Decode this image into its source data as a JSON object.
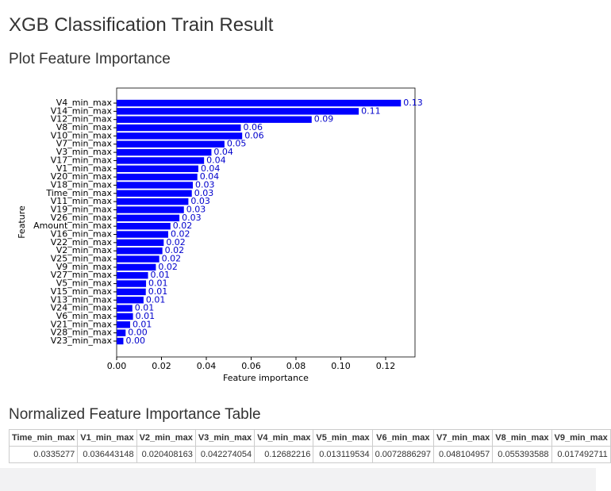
{
  "header": {
    "title": "XGB Classification Train Result",
    "subtitle": "Plot Feature Importance"
  },
  "chart_data": {
    "type": "barh",
    "xlabel": "Feature importance",
    "ylabel": "Feature",
    "color": "#0000ff",
    "label_color": "#0000cc",
    "categories": [
      "V4_min_max",
      "V14_min_max",
      "V12_min_max",
      "V8_min_max",
      "V10_min_max",
      "V7_min_max",
      "V3_min_max",
      "V17_min_max",
      "V1_min_max",
      "V20_min_max",
      "V18_min_max",
      "Time_min_max",
      "V11_min_max",
      "V19_min_max",
      "V26_min_max",
      "Amount_min_max",
      "V16_min_max",
      "V22_min_max",
      "V2_min_max",
      "V25_min_max",
      "V9_min_max",
      "V27_min_max",
      "V5_min_max",
      "V15_min_max",
      "V13_min_max",
      "V24_min_max",
      "V6_min_max",
      "V21_min_max",
      "V28_min_max",
      "V23_min_max"
    ],
    "values": [
      0.12682216,
      0.108,
      0.087,
      0.055393588,
      0.056,
      0.048104957,
      0.042274054,
      0.039,
      0.036443148,
      0.036,
      0.034,
      0.0335277,
      0.032,
      0.03,
      0.028,
      0.024,
      0.023,
      0.021,
      0.020408163,
      0.019,
      0.017492711,
      0.014,
      0.013119534,
      0.013,
      0.012,
      0.007,
      0.0072886297,
      0.006,
      0.004,
      0.003
    ],
    "value_labels": [
      "0.13",
      "0.11",
      "0.09",
      "0.06",
      "0.06",
      "0.05",
      "0.04",
      "0.04",
      "0.04",
      "0.04",
      "0.03",
      "0.03",
      "0.03",
      "0.03",
      "0.03",
      "0.02",
      "0.02",
      "0.02",
      "0.02",
      "0.02",
      "0.02",
      "0.01",
      "0.01",
      "0.01",
      "0.01",
      "0.01",
      "0.01",
      "0.01",
      "0.00",
      "0.00"
    ],
    "xlim": [
      0,
      0.1331
    ],
    "xticks": [
      {
        "value": 0,
        "label": "0.00"
      },
      {
        "value": 0.02,
        "label": "0.02"
      },
      {
        "value": 0.04,
        "label": "0.04"
      },
      {
        "value": 0.06,
        "label": "0.06"
      },
      {
        "value": 0.08,
        "label": "0.08"
      },
      {
        "value": 0.1,
        "label": "0.10"
      },
      {
        "value": 0.12,
        "label": "0.12"
      }
    ]
  },
  "table": {
    "title": "Normalized Feature Importance Table",
    "headers": [
      "Time_min_max",
      "V1_min_max",
      "V2_min_max",
      "V3_min_max",
      "V4_min_max",
      "V5_min_max",
      "V6_min_max",
      "V7_min_max",
      "V8_min_max",
      "V9_min_max"
    ],
    "rows": [
      [
        "0.0335277",
        "0.036443148",
        "0.020408163",
        "0.042274054",
        "0.12682216",
        "0.013119534",
        "0.0072886297",
        "0.048104957",
        "0.055393588",
        "0.017492711"
      ]
    ]
  }
}
